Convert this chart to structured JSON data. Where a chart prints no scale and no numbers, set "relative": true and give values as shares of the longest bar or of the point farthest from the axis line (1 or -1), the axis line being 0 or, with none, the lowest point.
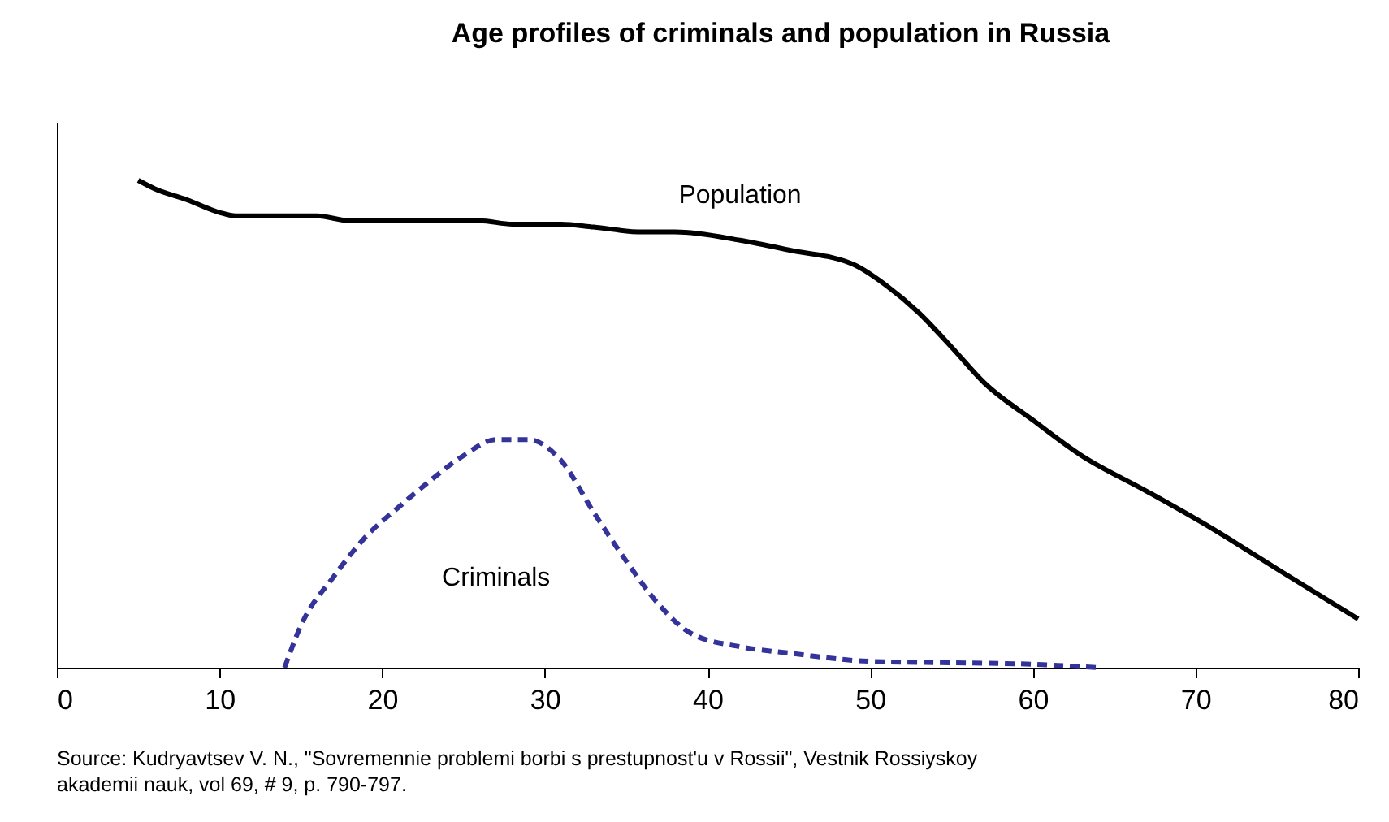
{
  "chart_data": {
    "type": "line",
    "title": "Age profiles of criminals and population in Russia",
    "relative": true,
    "xlim": [
      0,
      80
    ],
    "xticks": [
      0,
      10,
      20,
      30,
      40,
      50,
      60,
      70,
      80
    ],
    "grid": false,
    "legend": false,
    "marker": "none",
    "series": [
      {
        "name": "Population",
        "color": "#000000",
        "line_style": "solid",
        "x": [
          5,
          6,
          8,
          10,
          11,
          16,
          18,
          26,
          28,
          31,
          33,
          36,
          38,
          42,
          45,
          49,
          51,
          53,
          55,
          57,
          60,
          63,
          67,
          71,
          75,
          80
        ],
        "values": [
          1.0,
          0.983,
          0.96,
          0.934,
          0.927,
          0.927,
          0.917,
          0.917,
          0.91,
          0.91,
          0.904,
          0.894,
          0.894,
          0.877,
          0.857,
          0.827,
          0.784,
          0.728,
          0.658,
          0.585,
          0.508,
          0.435,
          0.362,
          0.286,
          0.203,
          0.1
        ]
      },
      {
        "name": "Criminals",
        "color": "#333399",
        "line_style": "dashed",
        "x": [
          14,
          15,
          17,
          19,
          21,
          23,
          25,
          27,
          29,
          31,
          33,
          35,
          37,
          39,
          42,
          45,
          50,
          55,
          60,
          64
        ],
        "values": [
          0,
          0.086,
          0.186,
          0.269,
          0.329,
          0.385,
          0.435,
          0.468,
          0.468,
          0.425,
          0.319,
          0.219,
          0.13,
          0.07,
          0.043,
          0.03,
          0.013,
          0.01,
          0.007,
          0
        ]
      }
    ],
    "annotations": [
      "Source: Kudryavtsev V. N., \"Sovremennie problemi borbi s prestupnost'u v Rossii\", Vestnik Rossiyskoy akademii nauk, vol 69, # 9, p. 790-797."
    ]
  }
}
